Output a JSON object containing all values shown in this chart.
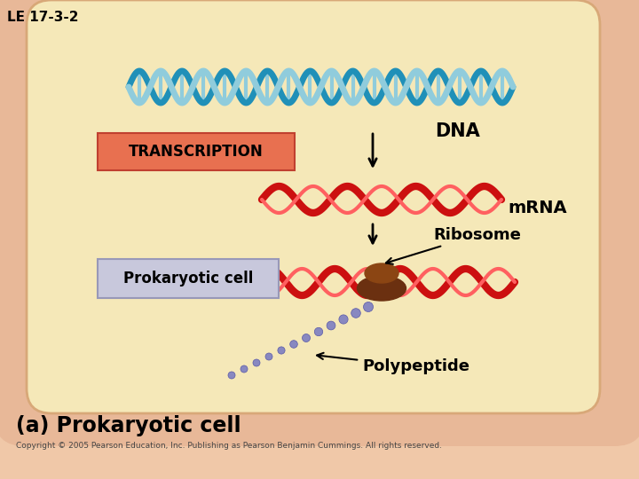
{
  "title": "LE 17-3-2",
  "subtitle_a": "(a) Prokaryotic cell",
  "copyright": "Copyright © 2005 Pearson Education, Inc. Publishing as Pearson Benjamin Cummings. All rights reserved.",
  "label_DNA": "DNA",
  "label_mRNA": "mRNA",
  "label_Ribosome": "Ribosome",
  "label_Polypeptide": "Polypeptide",
  "label_TRANSCRIPTION": "TRANSCRIPTION",
  "label_Prokaryotic": "Prokaryotic cell",
  "bg_color": "#f0c8a8",
  "cell_outer_fill": "#f0c8a8",
  "cell_inner_fill": "#f5e8b8",
  "cell_outer_color": "#e0a888",
  "transcription_box_fill": "#e87050",
  "transcription_box_edge": "#c04030",
  "transcription_box_text": "black",
  "prokaryotic_box_fill": "#c8c8dc",
  "prokaryotic_box_outline": "#9898b8",
  "dna_dark": "#2090b8",
  "dna_light": "#90ccdc",
  "mrna_color": "#cc1010",
  "ribosome_top_color": "#8b4513",
  "ribosome_bot_color": "#6b3010",
  "polypeptide_color": "#8888c0",
  "arrow_color": "black"
}
